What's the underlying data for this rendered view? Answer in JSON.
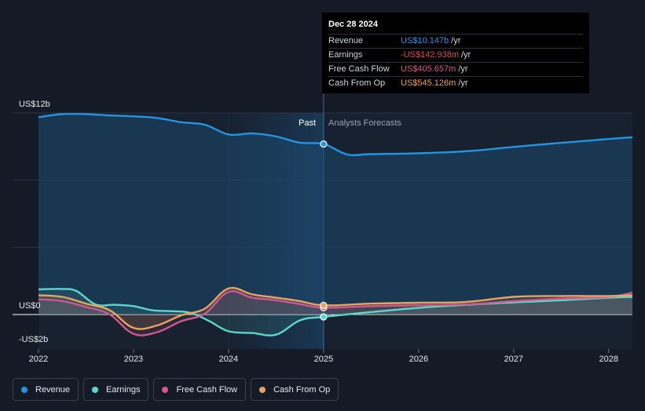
{
  "chart_data": {
    "type": "area",
    "y_axis_labels": {
      "top": "US$12b",
      "zero": "US$0",
      "bottom": "-US$2b"
    },
    "ylim": [
      -2,
      12
    ],
    "xlim": [
      2022.0,
      2028.25
    ],
    "divider_x": 2025.0,
    "past_label": "Past",
    "forecast_label": "Analysts Forecasts",
    "x_ticks": [
      {
        "value": 2022,
        "label": "2022"
      },
      {
        "value": 2023,
        "label": "2023"
      },
      {
        "value": 2024,
        "label": "2024"
      },
      {
        "value": 2025,
        "label": "2025"
      },
      {
        "value": 2026,
        "label": "2026"
      },
      {
        "value": 2027,
        "label": "2027"
      },
      {
        "value": 2028,
        "label": "2028"
      }
    ],
    "series": [
      {
        "key": "revenue",
        "name": "Revenue",
        "color": "#2394df",
        "x": [
          2022.0,
          2022.25,
          2022.5,
          2022.75,
          2023.0,
          2023.25,
          2023.5,
          2023.75,
          2024.0,
          2024.25,
          2024.5,
          2024.75,
          2025.0,
          2025.25,
          2025.5,
          2026.0,
          2026.5,
          2027.0,
          2027.5,
          2028.0,
          2028.25
        ],
        "y": [
          11.75,
          11.93,
          11.93,
          11.85,
          11.8,
          11.7,
          11.45,
          11.3,
          10.72,
          10.78,
          10.6,
          10.23,
          10.15,
          9.53,
          9.55,
          9.6,
          9.72,
          9.98,
          10.22,
          10.45,
          10.55
        ]
      },
      {
        "key": "earnings",
        "name": "Earnings",
        "color": "#5ad8cc",
        "x": [
          2022.0,
          2022.25,
          2022.4,
          2022.6,
          2022.8,
          2023.0,
          2023.2,
          2023.4,
          2023.6,
          2023.8,
          2024.0,
          2024.25,
          2024.5,
          2024.75,
          2025.0,
          2025.5,
          2026.0,
          2026.5,
          2027.0,
          2027.5,
          2028.0,
          2028.25
        ],
        "y": [
          1.5,
          1.52,
          1.4,
          0.6,
          0.58,
          0.5,
          0.25,
          0.2,
          0.1,
          -0.4,
          -1.0,
          -1.1,
          -1.2,
          -0.35,
          -0.14,
          0.15,
          0.4,
          0.58,
          0.72,
          0.85,
          1.0,
          1.05
        ]
      },
      {
        "key": "fcf",
        "name": "Free Cash Flow",
        "color": "#d1588c",
        "x": [
          2022.0,
          2022.25,
          2022.5,
          2022.75,
          2023.0,
          2023.25,
          2023.5,
          2023.75,
          2024.0,
          2024.25,
          2024.5,
          2024.75,
          2025.0,
          2025.5,
          2026.0,
          2026.5,
          2027.0,
          2027.5,
          2028.0,
          2028.25
        ],
        "y": [
          0.9,
          0.8,
          0.45,
          0.0,
          -1.15,
          -1.05,
          -0.4,
          0.05,
          1.35,
          1.0,
          0.85,
          0.62,
          0.41,
          0.5,
          0.55,
          0.6,
          0.8,
          0.95,
          1.05,
          1.3
        ]
      },
      {
        "key": "cfo",
        "name": "Cash From Op",
        "color": "#e8a45c",
        "x": [
          2022.0,
          2022.25,
          2022.5,
          2022.75,
          2023.0,
          2023.25,
          2023.5,
          2023.75,
          2024.0,
          2024.25,
          2024.5,
          2024.75,
          2025.0,
          2025.5,
          2026.0,
          2026.5,
          2027.0,
          2027.5,
          2028.0,
          2028.25
        ],
        "y": [
          1.15,
          1.05,
          0.65,
          0.25,
          -0.8,
          -0.65,
          -0.05,
          0.35,
          1.55,
          1.2,
          1.0,
          0.8,
          0.545,
          0.65,
          0.7,
          0.75,
          1.05,
          1.1,
          1.1,
          1.15
        ]
      }
    ],
    "highlight_x": 2025.0
  },
  "tooltip": {
    "date": "Dec 28 2024",
    "rows": [
      {
        "label": "Revenue",
        "value": "US$10.147b",
        "unit": "/yr",
        "color": "#2394df"
      },
      {
        "label": "Earnings",
        "value": "-US$142.938m",
        "unit": "/yr",
        "color": "#e5484d"
      },
      {
        "label": "Free Cash Flow",
        "value": "US$405.657m",
        "unit": "/yr",
        "color": "#d1588c"
      },
      {
        "label": "Cash From Op",
        "value": "US$545.126m",
        "unit": "/yr",
        "color": "#e8a45c"
      }
    ]
  },
  "legend": [
    {
      "label": "Revenue",
      "color": "#2394df"
    },
    {
      "label": "Earnings",
      "color": "#5ad8cc"
    },
    {
      "label": "Free Cash Flow",
      "color": "#d1588c"
    },
    {
      "label": "Cash From Op",
      "color": "#e8a45c"
    }
  ]
}
